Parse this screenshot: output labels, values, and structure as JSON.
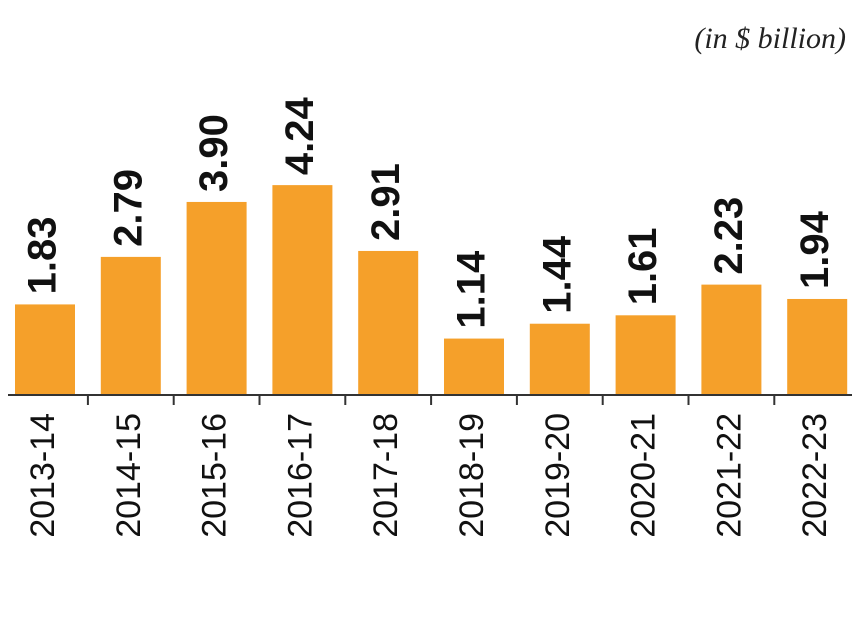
{
  "chart_data": {
    "type": "bar",
    "subtitle": "(in $ billion)",
    "categories": [
      "2013-14",
      "2014-15",
      "2015-16",
      "2016-17",
      "2017-18",
      "2018-19",
      "2019-20",
      "2020-21",
      "2021-22",
      "2022-23"
    ],
    "values": [
      1.83,
      2.79,
      3.9,
      4.24,
      2.91,
      1.14,
      1.44,
      1.61,
      2.23,
      1.94
    ],
    "value_labels": [
      "1.83",
      "2.79",
      "3.90",
      "4.24",
      "2.91",
      "1.14",
      "1.44",
      "1.61",
      "2.23",
      "1.94"
    ],
    "color": "#f5a02a"
  }
}
